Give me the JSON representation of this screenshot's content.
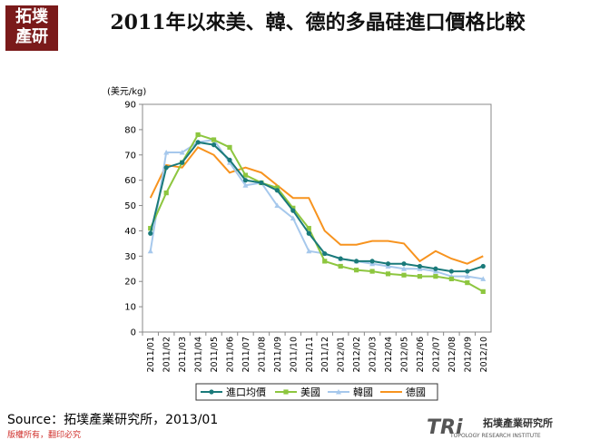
{
  "logo": [
    "拓墣",
    "產研"
  ],
  "chart_data": {
    "type": "line",
    "title": "2011年以來美、韓、德的多晶硅進口價格比較",
    "y_label": "(美元/kg)",
    "categories": [
      "2011/01",
      "2011/02",
      "2011/03",
      "2011/04",
      "2011/05",
      "2011/06",
      "2011/07",
      "2011/08",
      "2011/09",
      "2011/10",
      "2011/11",
      "2011/12",
      "2012/01",
      "2012/02",
      "2012/03",
      "2012/04",
      "2012/05",
      "2012/06",
      "2012/07",
      "2012/08",
      "2012/09",
      "2012/10"
    ],
    "series": [
      {
        "name": "進口均價",
        "color": "#1a7a7a",
        "marker": "circle",
        "values": [
          39,
          65,
          67,
          75,
          74,
          68,
          60,
          59,
          56,
          48,
          39,
          31,
          29,
          28,
          28,
          27,
          27,
          26,
          25,
          24,
          24,
          26
        ]
      },
      {
        "name": "美國",
        "color": "#8dc63f",
        "marker": "square",
        "values": [
          41,
          55,
          67,
          78,
          76,
          73,
          62,
          59,
          57,
          49,
          41,
          28,
          26,
          24.5,
          24,
          23,
          22.5,
          22,
          22,
          21,
          19.5,
          16
        ]
      },
      {
        "name": "韓國",
        "color": "#a6c8ec",
        "marker": "triangle",
        "values": [
          32,
          71,
          71,
          75,
          76,
          67,
          58,
          59,
          50,
          45,
          32,
          31,
          29,
          28,
          27,
          26,
          25,
          25,
          24,
          22,
          22,
          21
        ]
      },
      {
        "name": "德國",
        "color": "#f7931e",
        "marker": "none",
        "values": [
          53,
          66,
          65,
          73,
          70,
          63,
          65,
          63,
          58,
          53,
          53,
          40,
          34.5,
          34.5,
          36,
          36,
          35,
          28,
          32,
          29,
          27,
          30
        ]
      }
    ],
    "ylim": [
      0,
      90
    ],
    "yticks": [
      0,
      10,
      20,
      30,
      40,
      50,
      60,
      70,
      80,
      90
    ],
    "grid": false,
    "legend": "bottom"
  },
  "source": "Source：拓墣產業研究所，2013/01",
  "copyright": "版權所有，翻印必究",
  "footer_brand": "TRi",
  "footer_name": "拓墣產業研究所",
  "footer_sub": "TOPOLOGY RESEARCH INSTITUTE"
}
